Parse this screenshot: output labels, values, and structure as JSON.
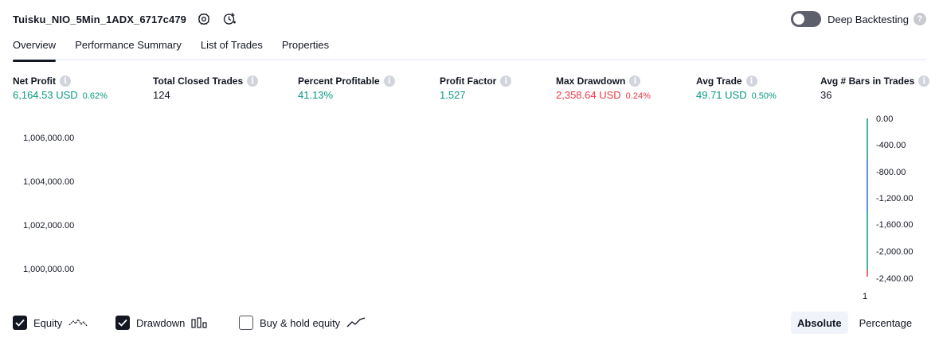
{
  "header": {
    "strategy_name": "Tuisku_NIO_5Min_1ADX_6717c479",
    "settings_icon": "gear-icon",
    "reload_icon": "refresh-clock-icon"
  },
  "deep_backtesting": {
    "label": "Deep Backtesting",
    "enabled": false,
    "help": "?"
  },
  "tabs": [
    {
      "label": "Overview",
      "active": true
    },
    {
      "label": "Performance Summary",
      "active": false
    },
    {
      "label": "List of Trades",
      "active": false
    },
    {
      "label": "Properties",
      "active": false
    }
  ],
  "metrics": {
    "net_profit": {
      "label": "Net Profit",
      "value": "6,164.53 USD",
      "pct": "0.62%"
    },
    "total_closed_trades": {
      "label": "Total Closed Trades",
      "value": "124"
    },
    "percent_profitable": {
      "label": "Percent Profitable",
      "value": "41.13%"
    },
    "profit_factor": {
      "label": "Profit Factor",
      "value": "1.527"
    },
    "max_drawdown": {
      "label": "Max Drawdown",
      "value": "2,358.64 USD",
      "pct": "0.24%"
    },
    "avg_trade": {
      "label": "Avg Trade",
      "value": "49.71 USD",
      "pct": "0.50%"
    },
    "avg_bars": {
      "label": "Avg # Bars in Trades",
      "value": "36"
    },
    "info_glyph": "i"
  },
  "chart": {
    "left_axis": [
      "1,006,000.00",
      "1,004,000.00",
      "1,002,000.00",
      "1,000,000.00"
    ],
    "right_axis": [
      "0.00",
      "-400.00",
      "-800.00",
      "-1,200.00",
      "-1,600.00",
      "-2,000.00",
      "-2,400.00"
    ],
    "x_axis": [
      "1"
    ]
  },
  "chart_data": {
    "type": "line",
    "left_axis_ticks": [
      1006000,
      1004000,
      1002000,
      1000000
    ],
    "right_axis_ticks": [
      0,
      -400,
      -800,
      -1200,
      -1600,
      -2000,
      -2400
    ],
    "x_ticks": [
      "1"
    ],
    "series": [
      {
        "name": "Equity",
        "visible": true
      },
      {
        "name": "Drawdown",
        "visible": true
      },
      {
        "name": "Buy & hold equity",
        "visible": false
      }
    ],
    "colors": {
      "up": "#089981",
      "mid": "#2962ff",
      "down": "#f23645"
    }
  },
  "legend": {
    "equity": {
      "label": "Equity",
      "checked": true
    },
    "drawdown": {
      "label": "Drawdown",
      "checked": true
    },
    "buy_hold": {
      "label": "Buy & hold equity",
      "checked": false
    }
  },
  "scale_toggle": {
    "absolute": "Absolute",
    "percentage": "Percentage",
    "selected": "Absolute"
  }
}
